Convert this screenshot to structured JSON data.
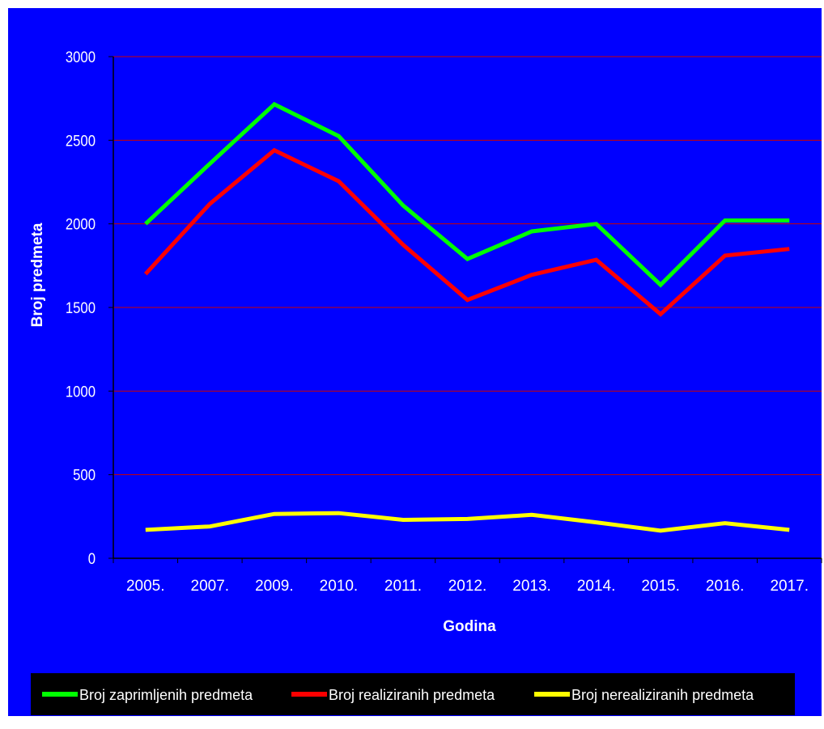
{
  "chart_data": {
    "type": "line",
    "title": "",
    "xlabel": "Godina",
    "ylabel": "Broj predmeta",
    "categories": [
      "2005.",
      "2007.",
      "2009.",
      "2010.",
      "2011.",
      "2012.",
      "2013.",
      "2014.",
      "2015.",
      "2016.",
      "2017."
    ],
    "ylim": [
      0,
      3000
    ],
    "yticks": [
      0,
      500,
      1000,
      1500,
      2000,
      2500,
      3000
    ],
    "grid": true,
    "legend_position": "bottom",
    "series": [
      {
        "name": "Broj zaprimljenih predmeta",
        "color": "#00ff00",
        "values": [
          2000,
          2360,
          2715,
          2525,
          2110,
          1790,
          1955,
          2000,
          1635,
          2020,
          2020
        ]
      },
      {
        "name": "Broj realiziranih predmeta",
        "color": "#ff0000",
        "values": [
          1700,
          2120,
          2440,
          2255,
          1875,
          1545,
          1695,
          1785,
          1460,
          1810,
          1850
        ]
      },
      {
        "name": "Broj nerealiziranih predmeta",
        "color": "#ffff00",
        "values": [
          170,
          190,
          265,
          270,
          230,
          235,
          260,
          215,
          165,
          210,
          170
        ]
      }
    ],
    "colors": {
      "background": "#0000ff",
      "gridline": "#cc0000",
      "text": "#ffffff",
      "legend_background": "#000000"
    }
  }
}
